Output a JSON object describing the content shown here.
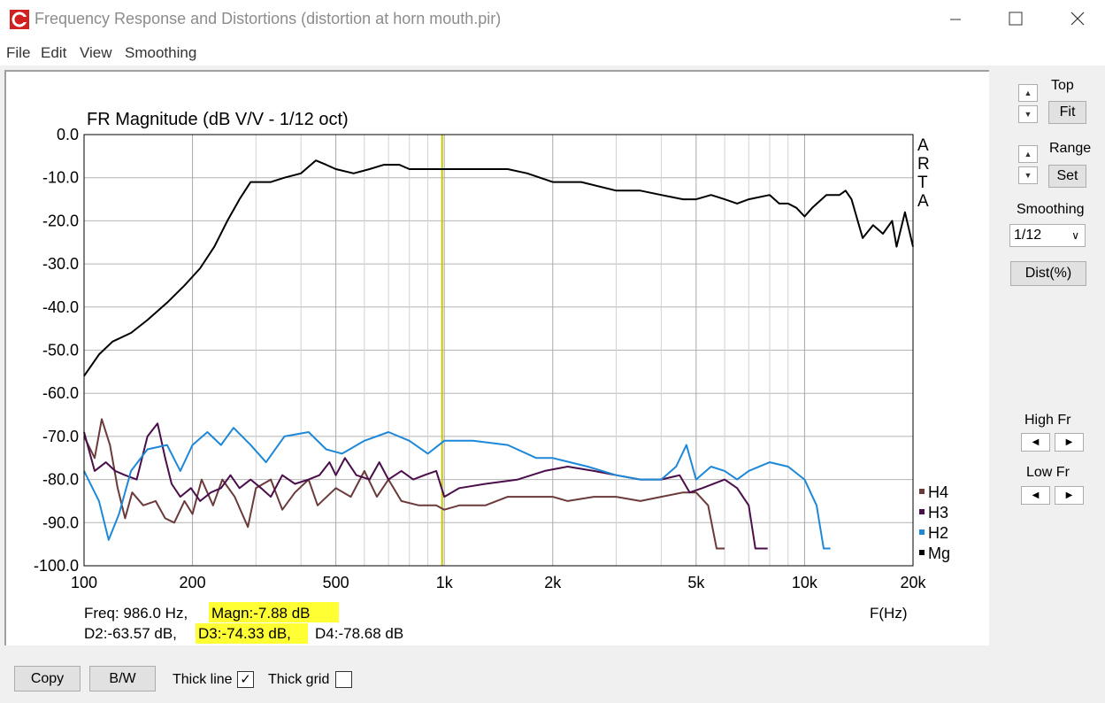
{
  "window": {
    "title": "Frequency Response and Distortions (distortion at horn mouth.pir)",
    "controls": [
      "minimize",
      "maximize",
      "close"
    ]
  },
  "menu": [
    "File",
    "Edit",
    "View",
    "Smoothing"
  ],
  "chart_data": {
    "type": "line",
    "title": "FR Magnitude (dB V/V - 1/12 oct)",
    "xscale": "log",
    "xlim": [
      100,
      20000
    ],
    "ylim": [
      -100,
      0
    ],
    "x_ticks": [
      100,
      200,
      500,
      1000,
      2000,
      5000,
      10000,
      20000
    ],
    "x_tick_labels": [
      "100",
      "200",
      "500",
      "1k",
      "2k",
      "5k",
      "10k",
      "20k"
    ],
    "y_ticks": [
      0,
      -10,
      -20,
      -30,
      -40,
      -50,
      -60,
      -70,
      -80,
      -90,
      -100
    ],
    "y_tick_labels": [
      "0.0",
      "-10.0",
      "-20.0",
      "-30.0",
      "-40.0",
      "-50.0",
      "-60.0",
      "-70.0",
      "-80.0",
      "-90.0",
      "-100.0"
    ],
    "xlabel": "F(Hz)",
    "brand": "ARTA",
    "cursor_freq": 986,
    "legend_position": "right",
    "series": [
      {
        "name": "H4",
        "color": "#6b3a3a",
        "points": [
          [
            100,
            -70
          ],
          [
            107,
            -75
          ],
          [
            112,
            -66
          ],
          [
            118,
            -72
          ],
          [
            124,
            -82
          ],
          [
            130,
            -89
          ],
          [
            136,
            -83
          ],
          [
            146,
            -86
          ],
          [
            158,
            -85
          ],
          [
            168,
            -89
          ],
          [
            178,
            -90
          ],
          [
            190,
            -85
          ],
          [
            200,
            -88
          ],
          [
            212,
            -80
          ],
          [
            228,
            -86
          ],
          [
            242,
            -80
          ],
          [
            262,
            -84
          ],
          [
            285,
            -91
          ],
          [
            300,
            -82
          ],
          [
            330,
            -80
          ],
          [
            355,
            -87
          ],
          [
            385,
            -83
          ],
          [
            420,
            -80
          ],
          [
            445,
            -86
          ],
          [
            500,
            -82
          ],
          [
            550,
            -84
          ],
          [
            600,
            -78
          ],
          [
            650,
            -84
          ],
          [
            700,
            -80
          ],
          [
            760,
            -85
          ],
          [
            850,
            -86
          ],
          [
            950,
            -86
          ],
          [
            1000,
            -87
          ],
          [
            1100,
            -86
          ],
          [
            1300,
            -86
          ],
          [
            1500,
            -84
          ],
          [
            1800,
            -84
          ],
          [
            2000,
            -84
          ],
          [
            2200,
            -85
          ],
          [
            2600,
            -84
          ],
          [
            3000,
            -84
          ],
          [
            3500,
            -85
          ],
          [
            4000,
            -84
          ],
          [
            4600,
            -83
          ],
          [
            5000,
            -83
          ],
          [
            5400,
            -86
          ],
          [
            5700,
            -96
          ],
          [
            6000,
            -96
          ]
        ]
      },
      {
        "name": "H3",
        "color": "#4a0e4a",
        "points": [
          [
            100,
            -69
          ],
          [
            107,
            -78
          ],
          [
            115,
            -76
          ],
          [
            122,
            -78
          ],
          [
            130,
            -79
          ],
          [
            140,
            -80
          ],
          [
            150,
            -70
          ],
          [
            160,
            -67
          ],
          [
            168,
            -75
          ],
          [
            175,
            -81
          ],
          [
            185,
            -84
          ],
          [
            198,
            -82
          ],
          [
            210,
            -85
          ],
          [
            225,
            -83
          ],
          [
            240,
            -82
          ],
          [
            255,
            -79
          ],
          [
            270,
            -82
          ],
          [
            290,
            -80
          ],
          [
            310,
            -82
          ],
          [
            330,
            -84
          ],
          [
            355,
            -79
          ],
          [
            385,
            -81
          ],
          [
            420,
            -80
          ],
          [
            450,
            -79
          ],
          [
            480,
            -76
          ],
          [
            500,
            -79
          ],
          [
            530,
            -75
          ],
          [
            570,
            -79
          ],
          [
            620,
            -80
          ],
          [
            660,
            -76
          ],
          [
            700,
            -80
          ],
          [
            760,
            -78
          ],
          [
            820,
            -80
          ],
          [
            880,
            -79
          ],
          [
            950,
            -78
          ],
          [
            1000,
            -84
          ],
          [
            1100,
            -82
          ],
          [
            1300,
            -81
          ],
          [
            1600,
            -80
          ],
          [
            1900,
            -78
          ],
          [
            2200,
            -77
          ],
          [
            2600,
            -78
          ],
          [
            3000,
            -79
          ],
          [
            3500,
            -80
          ],
          [
            4000,
            -80
          ],
          [
            4500,
            -79
          ],
          [
            4800,
            -83
          ],
          [
            5200,
            -82
          ],
          [
            6000,
            -80
          ],
          [
            6500,
            -82
          ],
          [
            7000,
            -86
          ],
          [
            7300,
            -96
          ],
          [
            7900,
            -96
          ]
        ]
      },
      {
        "name": "H2",
        "color": "#1e88d8",
        "points": [
          [
            100,
            -78
          ],
          [
            110,
            -85
          ],
          [
            117,
            -94
          ],
          [
            125,
            -88
          ],
          [
            135,
            -78
          ],
          [
            150,
            -73
          ],
          [
            170,
            -72
          ],
          [
            185,
            -78
          ],
          [
            200,
            -72
          ],
          [
            220,
            -69
          ],
          [
            240,
            -72
          ],
          [
            260,
            -68
          ],
          [
            290,
            -72
          ],
          [
            320,
            -76
          ],
          [
            360,
            -70
          ],
          [
            420,
            -69
          ],
          [
            470,
            -73
          ],
          [
            520,
            -74
          ],
          [
            600,
            -71
          ],
          [
            700,
            -69
          ],
          [
            800,
            -71
          ],
          [
            900,
            -74
          ],
          [
            1000,
            -71
          ],
          [
            1200,
            -71
          ],
          [
            1500,
            -72
          ],
          [
            1800,
            -75
          ],
          [
            2000,
            -75
          ],
          [
            2500,
            -77
          ],
          [
            3000,
            -79
          ],
          [
            3500,
            -80
          ],
          [
            4000,
            -80
          ],
          [
            4400,
            -77
          ],
          [
            4700,
            -72
          ],
          [
            5000,
            -80
          ],
          [
            5500,
            -77
          ],
          [
            6000,
            -78
          ],
          [
            6500,
            -80
          ],
          [
            7000,
            -78
          ],
          [
            8000,
            -76
          ],
          [
            9000,
            -77
          ],
          [
            10000,
            -80
          ],
          [
            10800,
            -86
          ],
          [
            11300,
            -96
          ],
          [
            11800,
            -96
          ]
        ]
      },
      {
        "name": "Mg",
        "color": "#000000",
        "points": [
          [
            100,
            -56
          ],
          [
            110,
            -51
          ],
          [
            120,
            -48
          ],
          [
            135,
            -46
          ],
          [
            150,
            -43
          ],
          [
            170,
            -39
          ],
          [
            190,
            -35
          ],
          [
            210,
            -31
          ],
          [
            230,
            -26
          ],
          [
            250,
            -20
          ],
          [
            270,
            -15
          ],
          [
            290,
            -11
          ],
          [
            310,
            -11
          ],
          [
            330,
            -11
          ],
          [
            360,
            -10
          ],
          [
            400,
            -9
          ],
          [
            440,
            -6
          ],
          [
            470,
            -7
          ],
          [
            500,
            -8
          ],
          [
            560,
            -9
          ],
          [
            620,
            -8
          ],
          [
            680,
            -7
          ],
          [
            750,
            -7
          ],
          [
            800,
            -8
          ],
          [
            900,
            -8
          ],
          [
            1000,
            -8
          ],
          [
            1200,
            -8
          ],
          [
            1500,
            -8
          ],
          [
            1700,
            -9
          ],
          [
            2000,
            -11
          ],
          [
            2400,
            -11
          ],
          [
            3000,
            -13
          ],
          [
            3500,
            -13
          ],
          [
            4000,
            -14
          ],
          [
            4600,
            -15
          ],
          [
            5000,
            -15
          ],
          [
            5500,
            -14
          ],
          [
            6000,
            -15
          ],
          [
            6500,
            -16
          ],
          [
            7000,
            -15
          ],
          [
            8000,
            -14
          ],
          [
            8500,
            -16
          ],
          [
            9000,
            -16
          ],
          [
            9500,
            -17
          ],
          [
            10000,
            -19
          ],
          [
            10500,
            -17
          ],
          [
            11500,
            -14
          ],
          [
            12500,
            -14
          ],
          [
            13000,
            -13
          ],
          [
            13500,
            -15
          ],
          [
            14500,
            -24
          ],
          [
            15500,
            -21
          ],
          [
            16500,
            -23
          ],
          [
            17500,
            -20
          ],
          [
            18000,
            -26
          ],
          [
            19000,
            -18
          ],
          [
            20000,
            -26
          ]
        ]
      }
    ],
    "cursor_readout": {
      "freq": "Freq: 986.0 Hz,",
      "magn": "Magn:-7.88 dB",
      "d2": "D2:-63.57 dB,",
      "d3": "D3:-74.33 dB,",
      "d4": "D4:-78.68 dB"
    }
  },
  "sidebar": {
    "top_label": "Top",
    "fit_button": "Fit",
    "range_label": "Range",
    "set_button": "Set",
    "smoothing_label": "Smoothing",
    "smoothing_value": "1/12",
    "dist_button": "Dist(%)",
    "high_fr_label": "High Fr",
    "low_fr_label": "Low Fr"
  },
  "bottombar": {
    "copy_button": "Copy",
    "bw_button": "B/W",
    "thick_line_label": "Thick line",
    "thick_line_checked": true,
    "thick_grid_label": "Thick grid",
    "thick_grid_checked": false
  },
  "colors": {
    "highlight": "#ffff33",
    "cursor_line": "#c8c800",
    "grid": "#b4b4b4"
  }
}
